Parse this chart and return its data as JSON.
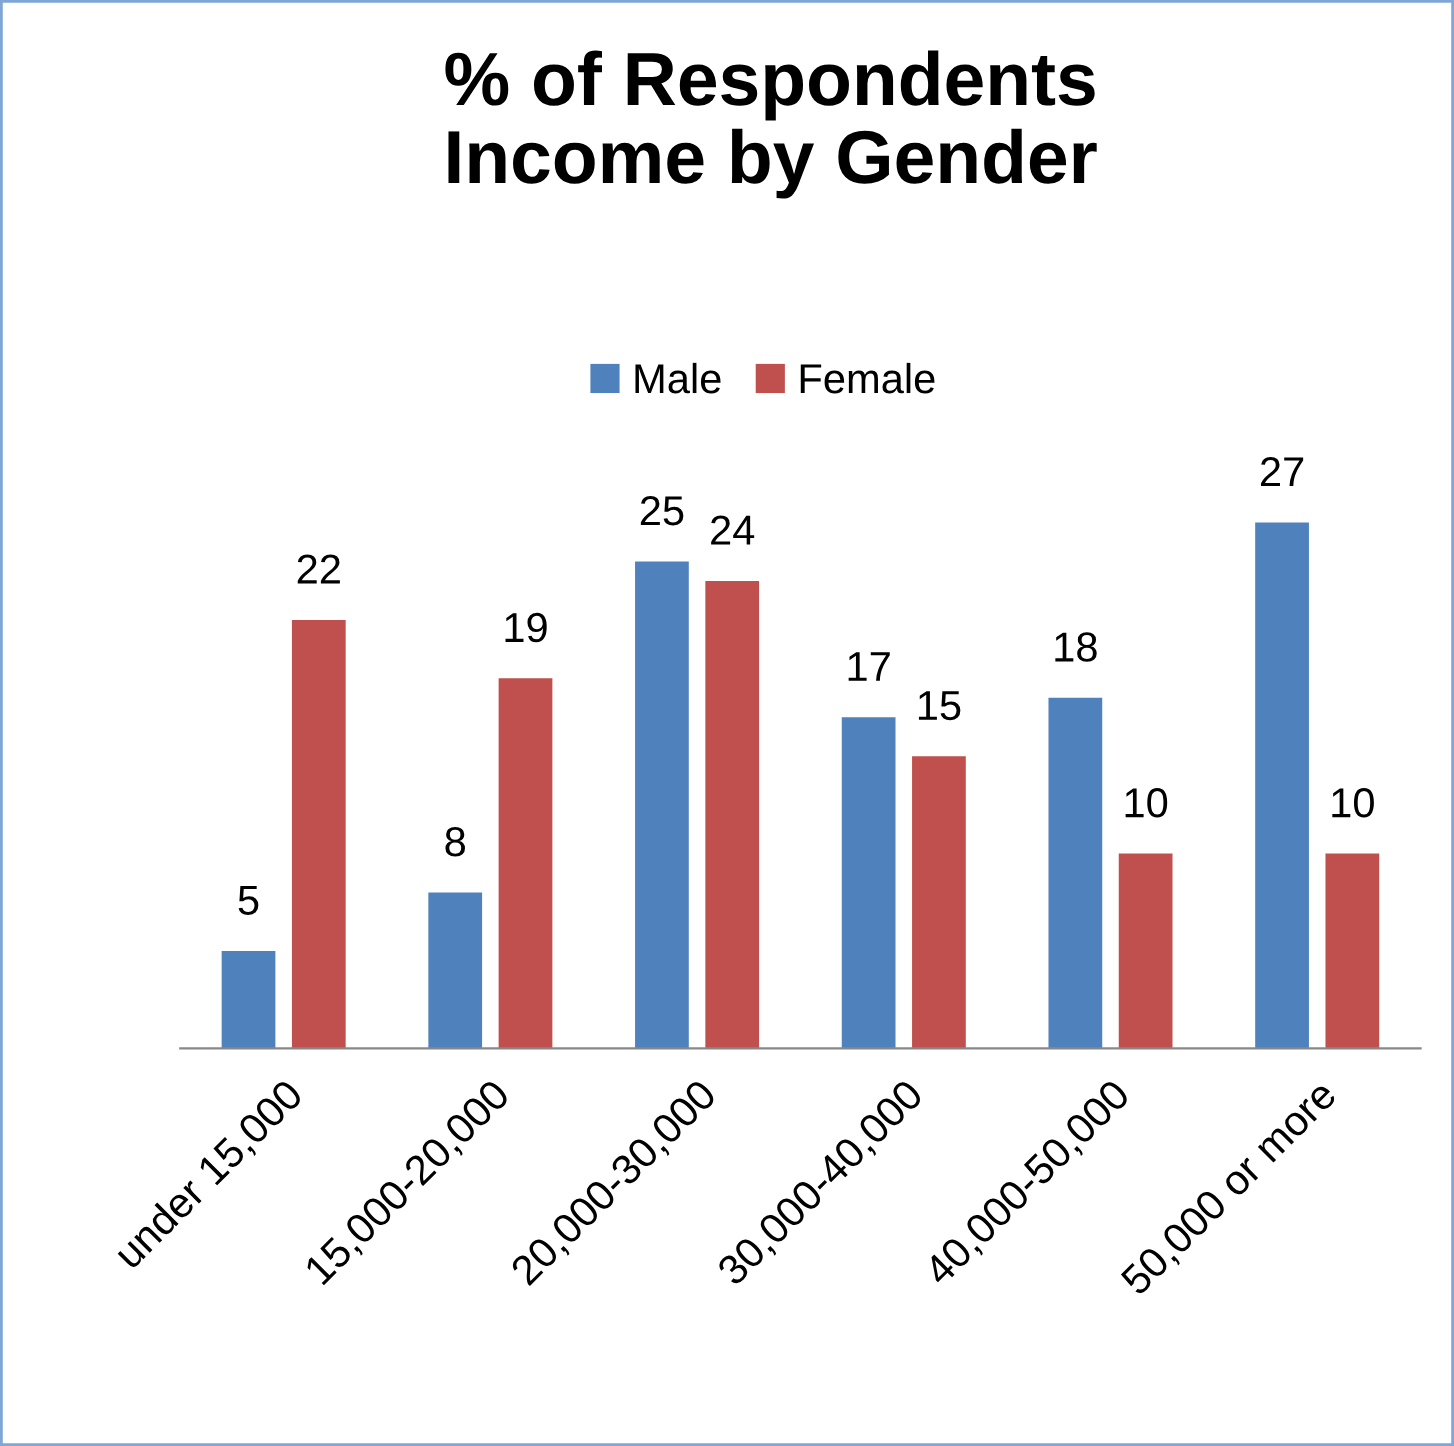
{
  "chart_data": {
    "type": "bar",
    "title": "% of Respondents\nIncome by Gender",
    "categories": [
      "under 15,000",
      "15,000-20,000",
      "20,000-30,000",
      "30,000-40,000",
      "40,000-50,000",
      "50,000 or more"
    ],
    "series": [
      {
        "name": "Male",
        "color": "#4f81bd",
        "values": [
          5,
          8,
          25,
          17,
          18,
          27
        ]
      },
      {
        "name": "Female",
        "color": "#c0504d",
        "values": [
          22,
          19,
          24,
          15,
          10,
          10
        ]
      }
    ],
    "data_labels": true,
    "legend": "top",
    "grid": false,
    "tick_labels": "x"
  }
}
